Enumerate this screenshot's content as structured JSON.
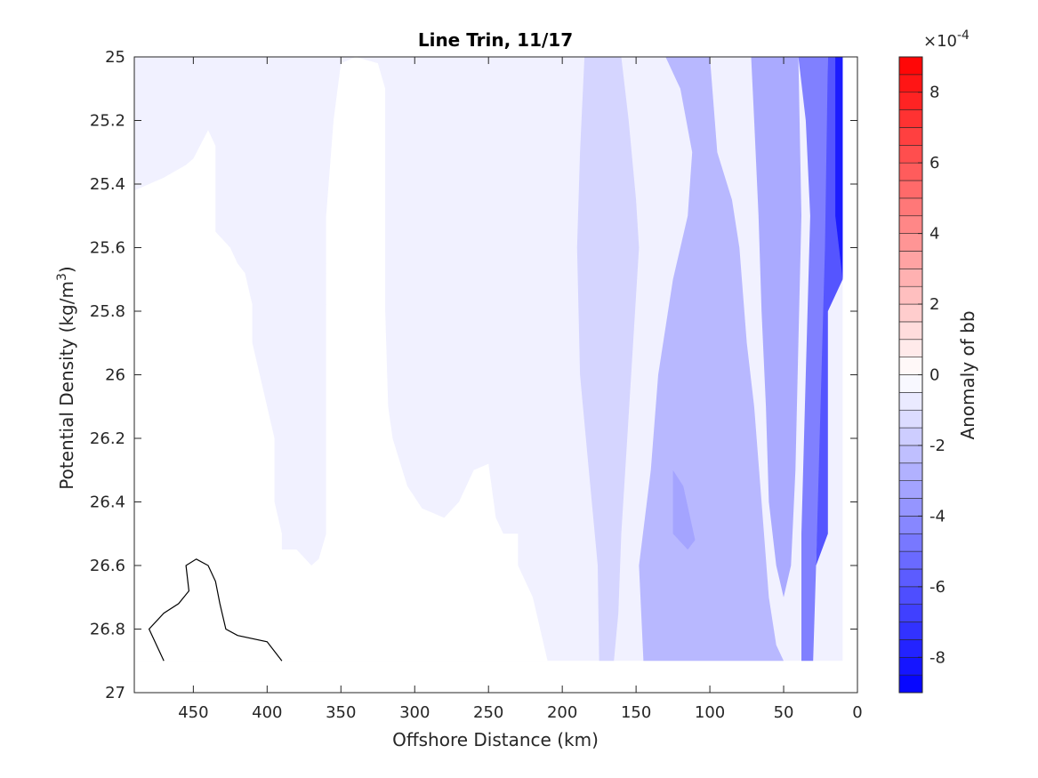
{
  "chart_data": {
    "type": "heatmap",
    "title": "Line Trin, 11/17",
    "xlabel": "Offshore Distance (km)",
    "ylabel_main": "Potential Density (kg/m",
    "ylabel_sup": "3",
    "ylabel_close": ")",
    "xlim": [
      490,
      0
    ],
    "ylim": [
      25,
      27
    ],
    "x_ticks": [
      450,
      400,
      350,
      300,
      250,
      200,
      150,
      100,
      50,
      0
    ],
    "x_tick_labels": [
      "450",
      "400",
      "350",
      "300",
      "250",
      "200",
      "150",
      "100",
      "50",
      "0"
    ],
    "y_ticks": [
      25,
      25.2,
      25.4,
      25.6,
      25.8,
      26,
      26.2,
      26.4,
      26.6,
      26.8,
      27
    ],
    "y_tick_labels": [
      "25",
      "25.2",
      "25.4",
      "25.6",
      "25.8",
      "26",
      "26.2",
      "26.4",
      "26.6",
      "26.8",
      "27"
    ],
    "data_extent": {
      "x": [
        490,
        10
      ],
      "y": [
        25,
        26.9
      ]
    },
    "colorbar": {
      "label": "Anomaly of bb",
      "exponent_prefix": "×10",
      "exponent": "-4",
      "range": [
        -9,
        9
      ],
      "ticks": [
        -8,
        -6,
        -4,
        -2,
        0,
        2,
        4,
        6,
        8
      ],
      "tick_labels": [
        "-8",
        "-6",
        "-4",
        "-2",
        "0",
        "2",
        "4",
        "6",
        "8"
      ],
      "levels": 36,
      "colors": {
        "negative": "#0000ff",
        "zero": "#ffffff",
        "positive": "#ff0000"
      }
    },
    "regions": [
      {
        "name": "background",
        "value": -0.5,
        "points": [
          [
            490,
            25
          ],
          [
            10,
            25
          ],
          [
            10,
            26.9
          ],
          [
            490,
            26.9
          ]
        ]
      },
      {
        "name": "white-core",
        "value": 0,
        "points": [
          [
            490,
            25.42
          ],
          [
            470,
            25.38
          ],
          [
            455,
            25.34
          ],
          [
            450,
            25.32
          ],
          [
            440,
            25.23
          ],
          [
            435,
            25.28
          ],
          [
            435,
            25.55
          ],
          [
            425,
            25.6
          ],
          [
            420,
            25.65
          ],
          [
            415,
            25.68
          ],
          [
            410,
            25.78
          ],
          [
            410,
            25.9
          ],
          [
            405,
            26.0
          ],
          [
            400,
            26.1
          ],
          [
            395,
            26.2
          ],
          [
            395,
            26.4
          ],
          [
            390,
            26.5
          ],
          [
            390,
            26.55
          ],
          [
            380,
            26.55
          ],
          [
            370,
            26.6
          ],
          [
            365,
            26.58
          ],
          [
            360,
            26.5
          ],
          [
            360,
            26.0
          ],
          [
            360,
            25.5
          ],
          [
            355,
            25.2
          ],
          [
            350,
            25.02
          ],
          [
            340,
            25.0
          ],
          [
            325,
            25.02
          ],
          [
            320,
            25.1
          ],
          [
            320,
            25.4
          ],
          [
            320,
            25.8
          ],
          [
            318,
            26.1
          ],
          [
            315,
            26.2
          ],
          [
            305,
            26.35
          ],
          [
            295,
            26.42
          ],
          [
            280,
            26.45
          ],
          [
            270,
            26.4
          ],
          [
            260,
            26.3
          ],
          [
            250,
            26.28
          ],
          [
            245,
            26.45
          ],
          [
            240,
            26.5
          ],
          [
            230,
            26.5
          ],
          [
            230,
            26.6
          ],
          [
            220,
            26.7
          ],
          [
            210,
            26.9
          ],
          [
            490,
            26.9
          ]
        ]
      },
      {
        "name": "white-island-1",
        "value": 0,
        "points": [
          [
            270,
            26.65
          ],
          [
            262,
            26.7
          ],
          [
            265,
            26.78
          ],
          [
            255,
            26.8
          ],
          [
            248,
            26.72
          ],
          [
            252,
            26.65
          ]
        ]
      },
      {
        "name": "white-island-2",
        "value": 0,
        "points": [
          [
            298,
            26.7
          ],
          [
            290,
            26.72
          ],
          [
            300,
            26.75
          ]
        ]
      },
      {
        "name": "band-160-120",
        "value": -1.5,
        "points": [
          [
            185,
            25
          ],
          [
            160,
            25
          ],
          [
            155,
            25.2
          ],
          [
            150,
            25.45
          ],
          [
            148,
            25.6
          ],
          [
            152,
            25.9
          ],
          [
            156,
            26.2
          ],
          [
            160,
            26.5
          ],
          [
            162,
            26.75
          ],
          [
            165,
            26.9
          ],
          [
            175,
            26.9
          ],
          [
            176,
            26.6
          ],
          [
            182,
            26.3
          ],
          [
            188,
            26.0
          ],
          [
            190,
            25.6
          ],
          [
            188,
            25.3
          ]
        ]
      },
      {
        "name": "band-150-40",
        "value": -2.5,
        "points": [
          [
            130,
            25
          ],
          [
            100,
            25
          ],
          [
            95,
            25.3
          ],
          [
            85,
            25.45
          ],
          [
            80,
            25.6
          ],
          [
            75,
            25.9
          ],
          [
            70,
            26.1
          ],
          [
            65,
            26.4
          ],
          [
            60,
            26.7
          ],
          [
            55,
            26.85
          ],
          [
            50,
            26.9
          ],
          [
            145,
            26.9
          ],
          [
            148,
            26.6
          ],
          [
            140,
            26.3
          ],
          [
            135,
            26.0
          ],
          [
            125,
            25.7
          ],
          [
            115,
            25.5
          ],
          [
            112,
            25.3
          ],
          [
            120,
            25.1
          ]
        ]
      },
      {
        "name": "blob-120",
        "value": -3.2,
        "points": [
          [
            125,
            26.3
          ],
          [
            118,
            26.35
          ],
          [
            110,
            26.52
          ],
          [
            115,
            26.55
          ],
          [
            125,
            26.5
          ]
        ]
      },
      {
        "name": "band-65-35",
        "value": -3.0,
        "points": [
          [
            72,
            25
          ],
          [
            40,
            25
          ],
          [
            38,
            25.5
          ],
          [
            40,
            25.9
          ],
          [
            42,
            26.3
          ],
          [
            45,
            26.6
          ],
          [
            50,
            26.7
          ],
          [
            55,
            26.6
          ],
          [
            60,
            26.4
          ],
          [
            62,
            26.1
          ],
          [
            65,
            25.8
          ],
          [
            67,
            25.5
          ],
          [
            70,
            25.2
          ]
        ]
      },
      {
        "name": "band-35-25",
        "value": -4.5,
        "points": [
          [
            40,
            25
          ],
          [
            20,
            25
          ],
          [
            20,
            25.6
          ],
          [
            25,
            26.2
          ],
          [
            28,
            26.6
          ],
          [
            30,
            26.9
          ],
          [
            38,
            26.9
          ],
          [
            38,
            26.5
          ],
          [
            35,
            26.0
          ],
          [
            32,
            25.5
          ],
          [
            35,
            25.2
          ]
        ]
      },
      {
        "name": "band-25-15",
        "value": -6.0,
        "points": [
          [
            20,
            25
          ],
          [
            10,
            25
          ],
          [
            10,
            25.7
          ],
          [
            20,
            25.8
          ],
          [
            20,
            26.5
          ],
          [
            28,
            26.6
          ],
          [
            25,
            26.1
          ],
          [
            22,
            25.6
          ]
        ]
      },
      {
        "name": "band-15-10",
        "value": -8.0,
        "points": [
          [
            15,
            25
          ],
          [
            10,
            25
          ],
          [
            10,
            25.7
          ],
          [
            15,
            25.5
          ]
        ]
      }
    ],
    "contour_lines": [
      {
        "level": 0,
        "points": [
          [
            470,
            26.9
          ],
          [
            480,
            26.8
          ],
          [
            470,
            26.75
          ],
          [
            460,
            26.72
          ],
          [
            453,
            26.68
          ],
          [
            455,
            26.6
          ],
          [
            448,
            26.58
          ],
          [
            440,
            26.6
          ],
          [
            435,
            26.65
          ],
          [
            432,
            26.72
          ],
          [
            428,
            26.8
          ],
          [
            420,
            26.82
          ],
          [
            400,
            26.84
          ],
          [
            390,
            26.9
          ]
        ]
      }
    ]
  }
}
